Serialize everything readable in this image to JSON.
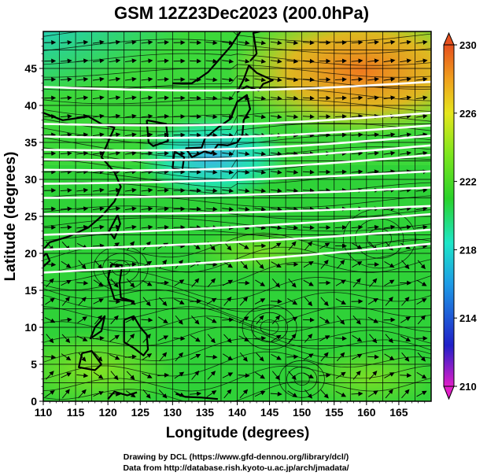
{
  "chart_data": {
    "type": "heatmap",
    "title": "GSM 12Z23Dec2023 (200.0hPa)",
    "xlabel": "Longitude (degrees)",
    "ylabel": "Latitude  (degrees)",
    "xlim": [
      110,
      170
    ],
    "ylim": [
      0,
      50
    ],
    "x_ticks": [
      110,
      115,
      120,
      125,
      130,
      135,
      140,
      145,
      150,
      155,
      160,
      165
    ],
    "y_ticks": [
      0,
      5,
      10,
      15,
      20,
      25,
      30,
      35,
      40,
      45
    ],
    "grid": true,
    "colorbar": {
      "min": 210,
      "max": 230,
      "ticks": [
        210,
        214,
        218,
        222,
        226,
        230
      ],
      "colors": [
        "#e01ec8",
        "#2020c8",
        "#1e9be6",
        "#1ee6c8",
        "#2ad22a",
        "#7ee61e",
        "#e6e61e",
        "#f0a01e",
        "#e6501e"
      ]
    },
    "temperature_regions": [
      {
        "lon": 118,
        "lat": 47,
        "value": 219
      },
      {
        "lon": 128,
        "lat": 44,
        "value": 220
      },
      {
        "lon": 138,
        "lat": 34,
        "value": 220
      },
      {
        "lon": 158,
        "lat": 46,
        "value": 227
      },
      {
        "lon": 150,
        "lat": 47,
        "value": 226
      },
      {
        "lon": 140,
        "lat": 10,
        "value": 223
      }
    ],
    "wind_speed_contours": [
      {
        "lat_west": 42.5,
        "lat_east": 43.2
      },
      {
        "lat_west": 37.5,
        "lat_east": 39.0
      },
      {
        "lat_west": 35.8,
        "lat_east": 37.3
      },
      {
        "lat_west": 34.0,
        "lat_east": 35.9
      },
      {
        "lat_west": 32.7,
        "lat_east": 34.6
      },
      {
        "lat_west": 31.3,
        "lat_east": 33.3
      },
      {
        "lat_west": 29.4,
        "lat_east": 31.1
      },
      {
        "lat_west": 27.5,
        "lat_east": 28.9
      },
      {
        "lat_west": 25.3,
        "lat_east": 26.4
      },
      {
        "lat_west": 22.5,
        "lat_east": 25.3
      },
      {
        "lat_west": 20.5,
        "lat_east": 23.2
      },
      {
        "lat_west": 17.4,
        "lat_east": 21.3
      }
    ],
    "credits": [
      "Drawing by DCL (https://www.gfd-dennou.org/library/dcl/)",
      "Data from http://database.rish.kyoto-u.ac.jp/arch/jmadata/"
    ]
  }
}
